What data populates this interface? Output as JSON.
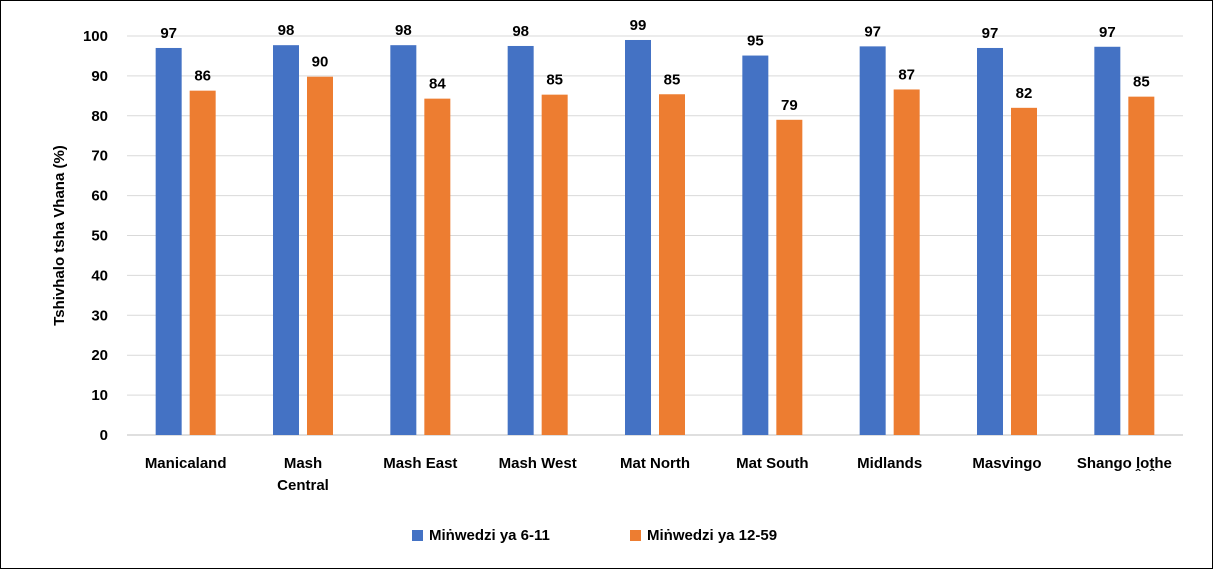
{
  "chart_data": {
    "type": "bar",
    "title": "",
    "xlabel": "",
    "ylabel": "Tshivhalo tsha Vhana  (%)",
    "ylim": [
      0,
      100
    ],
    "yticks": [
      0,
      10,
      20,
      30,
      40,
      50,
      60,
      70,
      80,
      90,
      100
    ],
    "grid": true,
    "legend": "bottom",
    "categories": [
      [
        "Manicaland"
      ],
      [
        "Mash",
        "Central"
      ],
      [
        "Mash East"
      ],
      [
        "Mash West"
      ],
      [
        "Mat North"
      ],
      [
        "Mat South"
      ],
      [
        "Midlands"
      ],
      [
        "Masvingo"
      ],
      [
        "Shango ḽoṱhe"
      ]
    ],
    "series": [
      {
        "name": "Miṅwedzi ya 6-11",
        "color": "#4472c4",
        "values": [
          97,
          97.7,
          97.7,
          97.5,
          99,
          95.1,
          97.4,
          97,
          97.3
        ],
        "labels": [
          "97",
          "98",
          "98",
          "98",
          "99",
          "95",
          "97",
          "97",
          "97"
        ]
      },
      {
        "name": "Miṅwedzi ya 12-59",
        "color": "#ed7d31",
        "values": [
          86.3,
          89.8,
          84.3,
          85.3,
          85.4,
          79,
          86.6,
          82,
          84.8
        ],
        "labels": [
          "86",
          "90",
          "84",
          "85",
          "85",
          "79",
          "87",
          "82",
          "85"
        ]
      }
    ]
  }
}
